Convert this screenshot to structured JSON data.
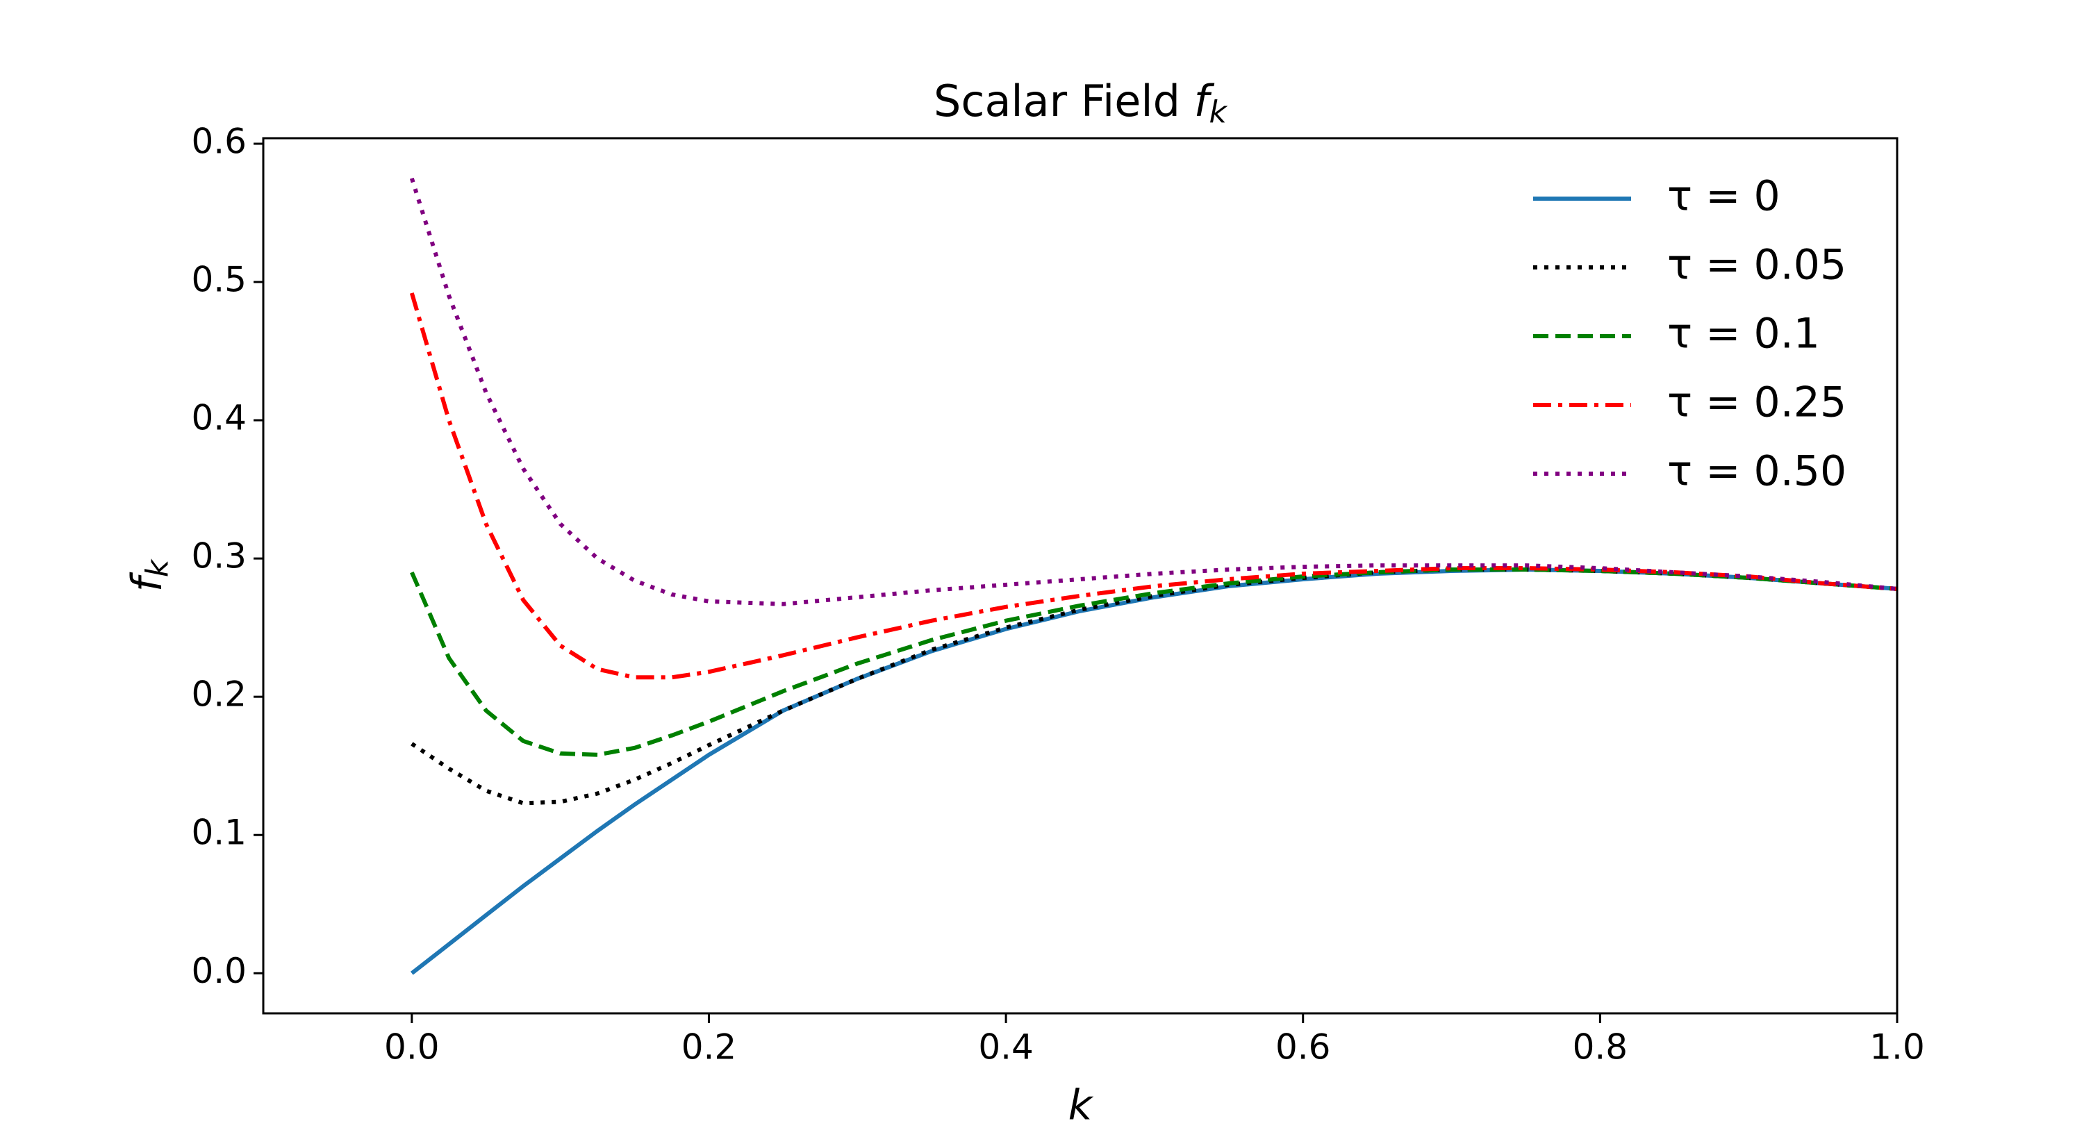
{
  "chart_data": {
    "type": "line",
    "title": [
      "Scalar Field ",
      "f",
      "k"
    ],
    "xlabel": "k",
    "ylabel": [
      "f",
      "k"
    ],
    "x": [
      0,
      0.025,
      0.05,
      0.075,
      0.1,
      0.125,
      0.15,
      0.175,
      0.2,
      0.25,
      0.3,
      0.35,
      0.4,
      0.45,
      0.5,
      0.55,
      0.6,
      0.65,
      0.7,
      0.75,
      0.8,
      0.85,
      0.9,
      0.95,
      1.0
    ],
    "series": [
      {
        "name": "τ = 0",
        "color": "#1f77b4",
        "linestyle": "solid",
        "values": [
          0,
          0.021,
          0.042,
          0.063,
          0.083,
          0.103,
          0.122,
          0.14,
          0.158,
          0.19,
          0.213,
          0.233,
          0.249,
          0.262,
          0.272,
          0.28,
          0.285,
          0.289,
          0.291,
          0.292,
          0.291,
          0.289,
          0.286,
          0.282,
          0.278
        ]
      },
      {
        "name": "τ = 0.05",
        "color": "#000000",
        "linestyle": "dotted",
        "values": [
          0.166,
          0.148,
          0.132,
          0.123,
          0.124,
          0.13,
          0.14,
          0.152,
          0.165,
          0.19,
          0.213,
          0.234,
          0.25,
          0.263,
          0.273,
          0.281,
          0.286,
          0.29,
          0.292,
          0.292,
          0.291,
          0.289,
          0.286,
          0.282,
          0.278
        ]
      },
      {
        "name": "τ = 0.1",
        "color": "#008000",
        "linestyle": "dashed",
        "values": [
          0.29,
          0.228,
          0.19,
          0.168,
          0.159,
          0.158,
          0.163,
          0.172,
          0.182,
          0.204,
          0.224,
          0.241,
          0.255,
          0.266,
          0.275,
          0.282,
          0.287,
          0.29,
          0.292,
          0.292,
          0.291,
          0.289,
          0.286,
          0.282,
          0.278
        ]
      },
      {
        "name": "τ = 0.25",
        "color": "#ff0000",
        "linestyle": "dashdot",
        "values": [
          0.492,
          0.4,
          0.325,
          0.27,
          0.237,
          0.22,
          0.214,
          0.214,
          0.218,
          0.23,
          0.243,
          0.255,
          0.265,
          0.273,
          0.28,
          0.285,
          0.289,
          0.291,
          0.293,
          0.293,
          0.292,
          0.29,
          0.287,
          0.282,
          0.278
        ]
      },
      {
        "name": "τ = 0.50",
        "color": "#800080",
        "linestyle": "dotted",
        "values": [
          0.575,
          0.49,
          0.42,
          0.365,
          0.325,
          0.3,
          0.284,
          0.274,
          0.269,
          0.267,
          0.272,
          0.277,
          0.281,
          0.285,
          0.289,
          0.292,
          0.294,
          0.295,
          0.295,
          0.295,
          0.293,
          0.29,
          0.287,
          0.283,
          0.278
        ]
      }
    ],
    "xlim": [
      -0.1,
      1.0
    ],
    "xticks": [
      {
        "value": 0,
        "label": "0.0"
      },
      0.2,
      0.4,
      0.6,
      0.8,
      {
        "value": 1,
        "label": "1.0"
      }
    ],
    "ylim": [
      -0.029,
      0.604
    ],
    "yticks": [
      {
        "value": 0,
        "label": "0.0"
      },
      0.1,
      0.2,
      0.3,
      0.4,
      0.5,
      0.6
    ],
    "grid": false,
    "legend": "upper right"
  }
}
